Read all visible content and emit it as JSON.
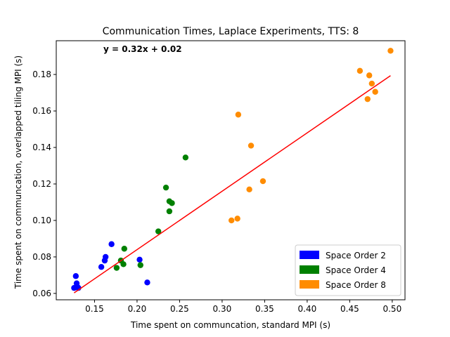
{
  "chart_data": {
    "type": "scatter",
    "title": "Communication Times, Laplace Experiments, TTS: 8",
    "xlabel": "Time spent on communcation, standard MPI (s)",
    "ylabel": "Time spent on communcation, overlapped tiling MPI (s)",
    "xlim": [
      0.105,
      0.515
    ],
    "ylim": [
      0.0565,
      0.1985
    ],
    "xticks": [
      0.15,
      0.2,
      0.25,
      0.3,
      0.35,
      0.4,
      0.45,
      0.5
    ],
    "xtick_labels": [
      "0.15",
      "0.20",
      "0.25",
      "0.30",
      "0.35",
      "0.40",
      "0.45",
      "0.50"
    ],
    "yticks": [
      0.06,
      0.08,
      0.1,
      0.12,
      0.14,
      0.16,
      0.18
    ],
    "ytick_labels": [
      "0.06",
      "0.08",
      "0.10",
      "0.12",
      "0.14",
      "0.16",
      "0.18"
    ],
    "grid": false,
    "legend_position": "bottom-right",
    "annotation": "y = 0.32x + 0.02",
    "fit_line": {
      "slope": 0.32,
      "intercept": 0.02,
      "x_range": [
        0.126,
        0.498
      ],
      "color": "#ff0000"
    },
    "series": [
      {
        "name": "Space Order 2",
        "color": "#0000ff",
        "points": [
          [
            0.126,
            0.063
          ],
          [
            0.128,
            0.0695
          ],
          [
            0.129,
            0.0655
          ],
          [
            0.13,
            0.0635
          ],
          [
            0.131,
            0.063
          ],
          [
            0.158,
            0.0745
          ],
          [
            0.162,
            0.078
          ],
          [
            0.163,
            0.08
          ],
          [
            0.17,
            0.087
          ],
          [
            0.203,
            0.0785
          ],
          [
            0.212,
            0.066
          ]
        ]
      },
      {
        "name": "Space Order 4",
        "color": "#008000",
        "points": [
          [
            0.176,
            0.074
          ],
          [
            0.181,
            0.078
          ],
          [
            0.184,
            0.076
          ],
          [
            0.185,
            0.0845
          ],
          [
            0.204,
            0.0755
          ],
          [
            0.225,
            0.094
          ],
          [
            0.234,
            0.118
          ],
          [
            0.238,
            0.1105
          ],
          [
            0.238,
            0.105
          ],
          [
            0.241,
            0.1095
          ],
          [
            0.257,
            0.1345
          ]
        ]
      },
      {
        "name": "Space Order 8",
        "color": "#ff8c00",
        "points": [
          [
            0.311,
            0.1
          ],
          [
            0.318,
            0.101
          ],
          [
            0.319,
            0.158
          ],
          [
            0.332,
            0.117
          ],
          [
            0.334,
            0.141
          ],
          [
            0.348,
            0.1215
          ],
          [
            0.462,
            0.182
          ],
          [
            0.471,
            0.1665
          ],
          [
            0.473,
            0.1795
          ],
          [
            0.476,
            0.175
          ],
          [
            0.48,
            0.1705
          ],
          [
            0.498,
            0.193
          ]
        ]
      }
    ]
  }
}
